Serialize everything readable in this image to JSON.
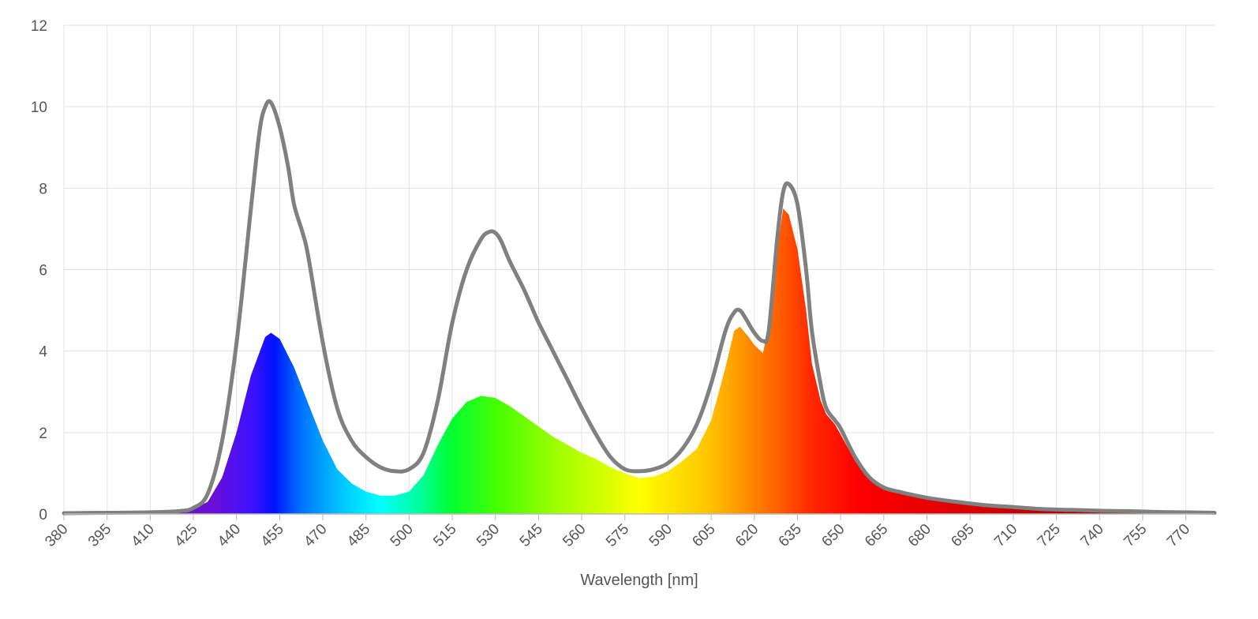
{
  "chart_data": {
    "type": "area",
    "title": "",
    "xlabel": "Wavelength [nm]",
    "ylabel": "",
    "xlim": [
      380,
      780
    ],
    "ylim": [
      0,
      12
    ],
    "grid": true,
    "y_ticks": [
      "0",
      "2",
      "4",
      "6",
      "8",
      "10",
      "12"
    ],
    "x_ticks": [
      "380",
      "395",
      "410",
      "425",
      "440",
      "455",
      "470",
      "485",
      "500",
      "515",
      "530",
      "545",
      "560",
      "575",
      "590",
      "605",
      "620",
      "635",
      "650",
      "665",
      "680",
      "695",
      "710",
      "725",
      "740",
      "755",
      "770"
    ],
    "colors": {
      "outline": "#808080",
      "grid": "#e3e3e3",
      "axis": "#bbbbbb"
    },
    "series": [
      {
        "role": "filled spectrum",
        "x": [
          380,
          395,
          410,
          420,
          425,
          430,
          435,
          440,
          445,
          450,
          452,
          455,
          460,
          465,
          470,
          475,
          480,
          485,
          490,
          495,
          500,
          505,
          510,
          515,
          520,
          525,
          530,
          535,
          540,
          545,
          550,
          555,
          560,
          565,
          570,
          575,
          580,
          585,
          590,
          595,
          600,
          605,
          610,
          613,
          615,
          618,
          620,
          623,
          625,
          628,
          630,
          632,
          635,
          638,
          640,
          643,
          645,
          648,
          650,
          655,
          660,
          665,
          670,
          680,
          690,
          700,
          710,
          720,
          730,
          740,
          750,
          760,
          770,
          780
        ],
        "y": [
          0.02,
          0.03,
          0.04,
          0.07,
          0.12,
          0.3,
          0.9,
          2.0,
          3.4,
          4.35,
          4.45,
          4.3,
          3.6,
          2.7,
          1.8,
          1.1,
          0.75,
          0.55,
          0.45,
          0.45,
          0.55,
          0.95,
          1.7,
          2.35,
          2.75,
          2.9,
          2.85,
          2.65,
          2.4,
          2.15,
          1.9,
          1.7,
          1.5,
          1.35,
          1.15,
          1.0,
          0.88,
          0.92,
          1.05,
          1.3,
          1.6,
          2.3,
          3.6,
          4.5,
          4.6,
          4.35,
          4.15,
          3.95,
          4.6,
          6.5,
          7.5,
          7.35,
          6.5,
          5.0,
          3.7,
          2.8,
          2.45,
          2.2,
          1.95,
          1.3,
          0.85,
          0.65,
          0.55,
          0.4,
          0.3,
          0.22,
          0.17,
          0.12,
          0.1,
          0.08,
          0.07,
          0.05,
          0.04,
          0.03
        ]
      },
      {
        "role": "outline",
        "x": [
          380,
          395,
          410,
          420,
          425,
          430,
          435,
          440,
          445,
          448,
          450,
          452,
          455,
          458,
          460,
          463,
          465,
          470,
          475,
          480,
          485,
          490,
          495,
          500,
          505,
          510,
          515,
          520,
          525,
          528,
          530,
          532,
          535,
          540,
          545,
          550,
          555,
          560,
          565,
          570,
          575,
          580,
          585,
          590,
          595,
          600,
          605,
          610,
          613,
          615,
          617,
          620,
          623,
          625,
          628,
          630,
          632,
          635,
          638,
          640,
          643,
          645,
          648,
          650,
          655,
          660,
          665,
          670,
          680,
          690,
          700,
          710,
          720,
          730,
          740,
          750,
          760,
          770,
          780
        ],
        "y": [
          0.02,
          0.03,
          0.04,
          0.07,
          0.15,
          0.5,
          1.8,
          4.2,
          7.5,
          9.4,
          10.0,
          10.1,
          9.5,
          8.5,
          7.6,
          6.9,
          6.3,
          4.2,
          2.6,
          1.8,
          1.4,
          1.15,
          1.05,
          1.1,
          1.5,
          2.8,
          4.7,
          6.0,
          6.75,
          6.93,
          6.9,
          6.7,
          6.2,
          5.5,
          4.7,
          4.0,
          3.3,
          2.6,
          1.95,
          1.4,
          1.1,
          1.05,
          1.1,
          1.25,
          1.6,
          2.2,
          3.2,
          4.5,
          4.95,
          5.0,
          4.8,
          4.45,
          4.25,
          4.5,
          6.8,
          7.9,
          8.1,
          7.6,
          6.0,
          4.5,
          3.2,
          2.6,
          2.3,
          2.1,
          1.4,
          0.9,
          0.65,
          0.55,
          0.4,
          0.3,
          0.22,
          0.17,
          0.12,
          0.1,
          0.08,
          0.07,
          0.05,
          0.04,
          0.03
        ]
      }
    ]
  }
}
